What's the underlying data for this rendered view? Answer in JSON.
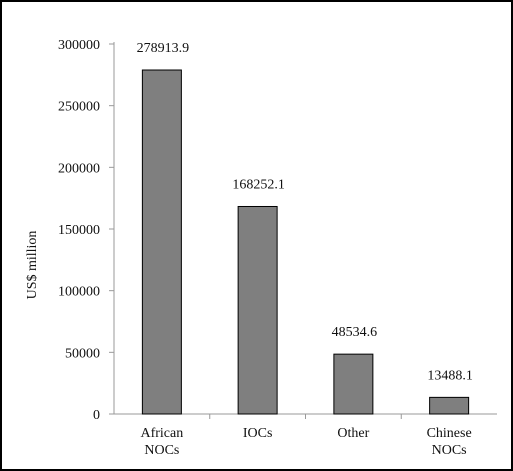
{
  "chart_data": {
    "type": "bar",
    "title": "",
    "xlabel": "",
    "ylabel": "US$ million",
    "categories": [
      [
        "African",
        "NOCs"
      ],
      [
        "IOCs"
      ],
      [
        "Other"
      ],
      [
        "Chinese",
        "NOCs"
      ]
    ],
    "values": [
      278913.9,
      168252.1,
      48534.6,
      13488.1
    ],
    "data_labels": [
      "278913.9",
      "168252.1",
      "48534.6",
      "13488.1"
    ],
    "ylim": [
      0,
      300000
    ],
    "yticks": [
      0,
      50000,
      100000,
      150000,
      200000,
      250000,
      300000
    ],
    "ytick_labels": [
      "0",
      "50000",
      "100000",
      "150000",
      "200000",
      "250000",
      "300000"
    ],
    "grid": false,
    "legend": "none",
    "colors": {
      "bar_fill": "#7f7f7f",
      "bar_stroke": "#000000",
      "axis": "#999999",
      "frame": "#000000"
    }
  }
}
